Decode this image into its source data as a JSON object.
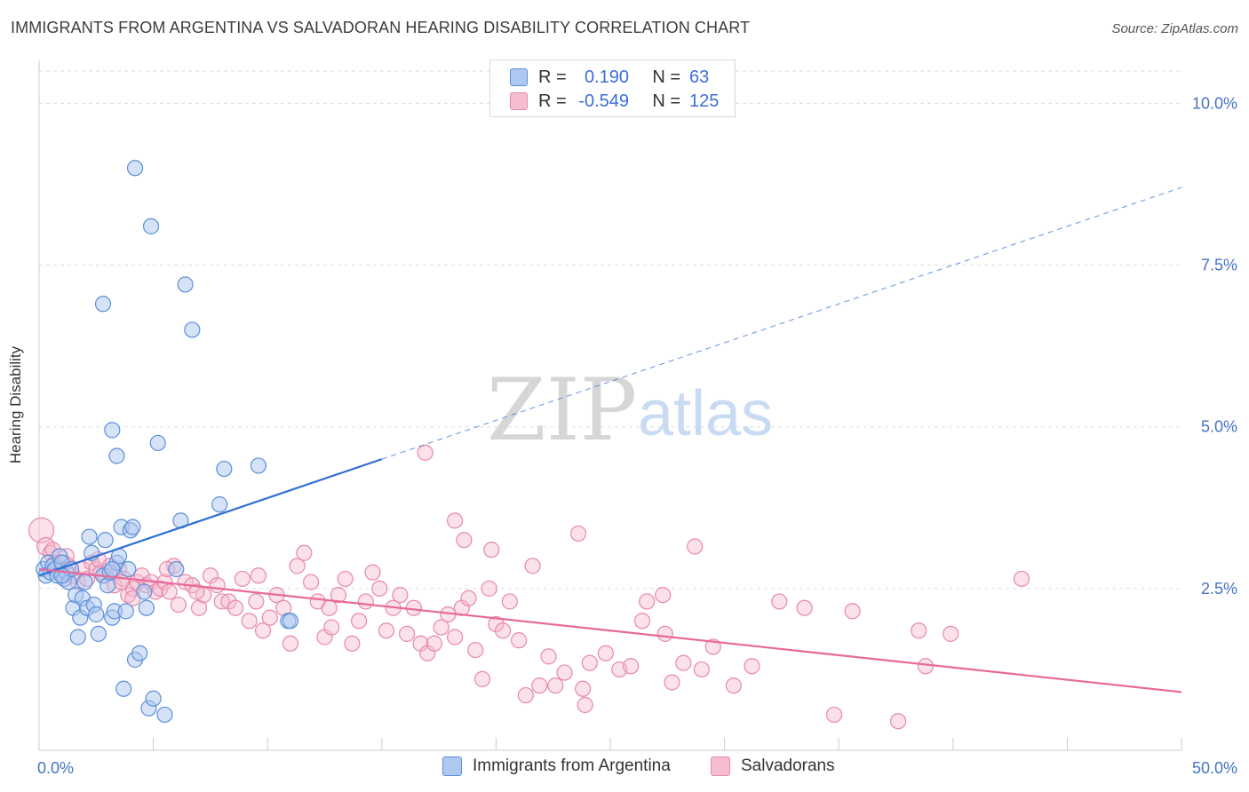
{
  "title": "IMMIGRANTS FROM ARGENTINA VS SALVADORAN HEARING DISABILITY CORRELATION CHART",
  "source": "Source: ZipAtlas.com",
  "watermark": {
    "zip": "ZIP",
    "atlas": "atlas"
  },
  "legend": {
    "r_label": "R =",
    "n_label": "N =",
    "rows": [
      {
        "r": "0.190",
        "n": "63"
      },
      {
        "r": "-0.549",
        "n": "125"
      }
    ]
  },
  "colors": {
    "blue_fill": "#aec8f0",
    "blue_stroke": "#5b8fd9",
    "blue_line": "#2f6fd4",
    "pink_fill": "#f5bdd0",
    "pink_stroke": "#e888aa",
    "pink_line": "#e8699a",
    "tick_text": "#4472c4",
    "grid": "#dddddd"
  },
  "chart_data": {
    "type": "scatter",
    "xlabel": "",
    "ylabel": "Hearing Disability",
    "xlim": [
      0,
      50
    ],
    "ylim": [
      0,
      10.5
    ],
    "x_tick_labels": [
      {
        "value": 0,
        "label": "0.0%"
      },
      {
        "value": 50,
        "label": "50.0%"
      }
    ],
    "x_minor_ticks": [
      5,
      10,
      15,
      20,
      25,
      30,
      35,
      40,
      45
    ],
    "y_ticks": [
      {
        "value": 2.5,
        "label": "2.5%"
      },
      {
        "value": 5.0,
        "label": "5.0%"
      },
      {
        "value": 7.5,
        "label": "7.5%"
      },
      {
        "value": 10.0,
        "label": "10.0%"
      }
    ],
    "grid": true,
    "series": [
      {
        "name": "Immigrants from Argentina",
        "color": "#5b8fd9",
        "trend": {
          "x0": 0,
          "y0": 2.7,
          "x1": 15,
          "y1": 4.5,
          "dashed_to_x": 50,
          "dashed_to_y": 8.7
        },
        "points": [
          [
            0.2,
            2.8
          ],
          [
            0.3,
            2.7
          ],
          [
            0.4,
            2.9
          ],
          [
            0.5,
            2.75
          ],
          [
            0.6,
            2.85
          ],
          [
            0.7,
            2.8
          ],
          [
            0.8,
            2.7
          ],
          [
            0.9,
            3.0
          ],
          [
            1.0,
            2.9
          ],
          [
            1.1,
            2.65
          ],
          [
            1.2,
            2.75
          ],
          [
            1.3,
            2.6
          ],
          [
            1.4,
            2.8
          ],
          [
            1.5,
            2.2
          ],
          [
            1.6,
            2.4
          ],
          [
            1.7,
            1.75
          ],
          [
            1.8,
            2.05
          ],
          [
            1.9,
            2.35
          ],
          [
            2.0,
            2.6
          ],
          [
            2.1,
            2.2
          ],
          [
            2.2,
            3.3
          ],
          [
            2.3,
            3.05
          ],
          [
            2.4,
            2.25
          ],
          [
            2.5,
            2.1
          ],
          [
            2.6,
            1.8
          ],
          [
            2.8,
            2.7
          ],
          [
            2.9,
            3.25
          ],
          [
            3.0,
            2.55
          ],
          [
            3.1,
            2.75
          ],
          [
            3.2,
            2.05
          ],
          [
            3.3,
            2.15
          ],
          [
            3.4,
            2.9
          ],
          [
            3.5,
            3.0
          ],
          [
            3.6,
            3.45
          ],
          [
            3.7,
            0.95
          ],
          [
            3.8,
            2.15
          ],
          [
            3.9,
            2.8
          ],
          [
            4.0,
            3.4
          ],
          [
            4.1,
            3.45
          ],
          [
            4.2,
            1.4
          ],
          [
            4.4,
            1.5
          ],
          [
            4.6,
            2.45
          ],
          [
            4.7,
            2.2
          ],
          [
            4.8,
            0.65
          ],
          [
            5.0,
            0.8
          ],
          [
            5.2,
            4.75
          ],
          [
            5.5,
            0.55
          ],
          [
            6.0,
            2.8
          ],
          [
            6.2,
            3.55
          ],
          [
            6.7,
            6.5
          ],
          [
            7.9,
            3.8
          ],
          [
            8.1,
            4.35
          ],
          [
            9.6,
            4.4
          ],
          [
            10.9,
            2.0
          ],
          [
            11.0,
            2.0
          ],
          [
            2.8,
            6.9
          ],
          [
            3.2,
            4.95
          ],
          [
            3.4,
            4.55
          ],
          [
            4.2,
            9.0
          ],
          [
            4.9,
            8.1
          ],
          [
            6.4,
            7.2
          ],
          [
            3.2,
            2.8
          ],
          [
            1.0,
            2.7
          ]
        ]
      },
      {
        "name": "Salvadorans",
        "color": "#e888aa",
        "trend": {
          "x0": 0,
          "y0": 2.8,
          "x1": 50,
          "y1": 0.9
        },
        "points": [
          [
            0.1,
            3.4
          ],
          [
            0.3,
            3.15
          ],
          [
            0.5,
            3.05
          ],
          [
            0.7,
            2.9
          ],
          [
            0.9,
            2.75
          ],
          [
            1.1,
            2.9
          ],
          [
            1.3,
            2.85
          ],
          [
            1.5,
            2.7
          ],
          [
            1.7,
            2.6
          ],
          [
            1.9,
            2.8
          ],
          [
            2.1,
            2.65
          ],
          [
            2.3,
            2.9
          ],
          [
            2.5,
            2.8
          ],
          [
            2.7,
            2.75
          ],
          [
            2.9,
            2.7
          ],
          [
            3.1,
            2.85
          ],
          [
            3.3,
            2.55
          ],
          [
            3.5,
            2.8
          ],
          [
            3.7,
            2.65
          ],
          [
            3.9,
            2.4
          ],
          [
            4.1,
            2.5
          ],
          [
            4.3,
            2.6
          ],
          [
            4.5,
            2.7
          ],
          [
            4.7,
            2.55
          ],
          [
            4.9,
            2.6
          ],
          [
            5.1,
            2.45
          ],
          [
            5.3,
            2.5
          ],
          [
            5.5,
            2.6
          ],
          [
            5.7,
            2.45
          ],
          [
            5.9,
            2.85
          ],
          [
            6.1,
            2.25
          ],
          [
            6.4,
            2.6
          ],
          [
            6.7,
            2.55
          ],
          [
            7.0,
            2.2
          ],
          [
            7.2,
            2.4
          ],
          [
            7.5,
            2.7
          ],
          [
            7.8,
            2.55
          ],
          [
            8.0,
            2.3
          ],
          [
            8.3,
            2.3
          ],
          [
            8.6,
            2.2
          ],
          [
            8.9,
            2.65
          ],
          [
            9.2,
            2.0
          ],
          [
            9.5,
            2.3
          ],
          [
            9.8,
            1.85
          ],
          [
            10.1,
            2.05
          ],
          [
            10.4,
            2.4
          ],
          [
            10.7,
            2.2
          ],
          [
            11.0,
            1.65
          ],
          [
            11.3,
            2.85
          ],
          [
            11.6,
            3.05
          ],
          [
            11.9,
            2.6
          ],
          [
            12.2,
            2.3
          ],
          [
            12.5,
            1.75
          ],
          [
            12.8,
            1.9
          ],
          [
            13.1,
            2.4
          ],
          [
            13.4,
            2.65
          ],
          [
            13.7,
            1.65
          ],
          [
            14.0,
            2.0
          ],
          [
            14.3,
            2.3
          ],
          [
            14.6,
            2.75
          ],
          [
            14.9,
            2.5
          ],
          [
            15.2,
            1.85
          ],
          [
            15.5,
            2.2
          ],
          [
            15.8,
            2.4
          ],
          [
            16.1,
            1.8
          ],
          [
            16.4,
            2.2
          ],
          [
            16.7,
            1.65
          ],
          [
            17.0,
            1.5
          ],
          [
            17.3,
            1.65
          ],
          [
            17.6,
            1.9
          ],
          [
            17.9,
            2.1
          ],
          [
            18.2,
            1.75
          ],
          [
            18.5,
            2.2
          ],
          [
            18.8,
            2.35
          ],
          [
            19.1,
            1.55
          ],
          [
            19.4,
            1.1
          ],
          [
            19.7,
            2.5
          ],
          [
            20.0,
            1.95
          ],
          [
            20.3,
            1.85
          ],
          [
            20.6,
            2.3
          ],
          [
            21.0,
            1.7
          ],
          [
            21.3,
            0.85
          ],
          [
            21.6,
            2.85
          ],
          [
            21.9,
            1.0
          ],
          [
            22.3,
            1.45
          ],
          [
            22.6,
            1.0
          ],
          [
            23.0,
            1.2
          ],
          [
            23.8,
            0.95
          ],
          [
            23.9,
            0.7
          ],
          [
            24.1,
            1.35
          ],
          [
            24.8,
            1.5
          ],
          [
            25.4,
            1.25
          ],
          [
            25.9,
            1.3
          ],
          [
            26.4,
            2.0
          ],
          [
            26.6,
            2.3
          ],
          [
            27.3,
            2.4
          ],
          [
            27.4,
            1.8
          ],
          [
            27.7,
            1.05
          ],
          [
            28.2,
            1.35
          ],
          [
            29.0,
            1.25
          ],
          [
            29.5,
            1.6
          ],
          [
            30.4,
            1.0
          ],
          [
            31.2,
            1.3
          ],
          [
            32.4,
            2.3
          ],
          [
            33.5,
            2.2
          ],
          [
            34.8,
            0.55
          ],
          [
            35.6,
            2.15
          ],
          [
            37.6,
            0.45
          ],
          [
            38.5,
            1.85
          ],
          [
            38.8,
            1.3
          ],
          [
            39.9,
            1.8
          ],
          [
            43.0,
            2.65
          ],
          [
            28.7,
            3.15
          ],
          [
            23.6,
            3.35
          ],
          [
            19.8,
            3.1
          ],
          [
            18.6,
            3.25
          ],
          [
            18.2,
            3.55
          ],
          [
            16.9,
            4.6
          ],
          [
            12.7,
            2.2
          ],
          [
            9.6,
            2.7
          ],
          [
            6.9,
            2.45
          ],
          [
            5.6,
            2.8
          ],
          [
            4.1,
            2.35
          ],
          [
            3.6,
            2.6
          ],
          [
            2.6,
            2.95
          ],
          [
            1.2,
            3.0
          ],
          [
            0.6,
            3.1
          ]
        ]
      }
    ]
  }
}
